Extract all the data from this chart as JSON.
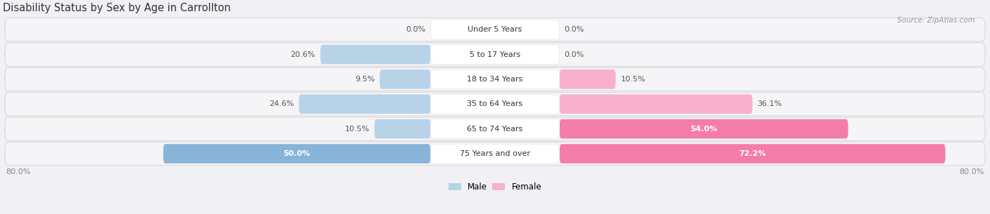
{
  "title": "Disability Status by Sex by Age in Carrollton",
  "source": "Source: ZipAtlas.com",
  "categories": [
    "Under 5 Years",
    "5 to 17 Years",
    "18 to 34 Years",
    "35 to 64 Years",
    "65 to 74 Years",
    "75 Years and over"
  ],
  "male_values": [
    0.0,
    20.6,
    9.5,
    24.6,
    10.5,
    50.0
  ],
  "female_values": [
    0.0,
    0.0,
    10.5,
    36.1,
    54.0,
    72.2
  ],
  "male_color": "#87b4d8",
  "female_color": "#f47caa",
  "male_color_light": "#b8d3e8",
  "female_color_light": "#f8b0cb",
  "row_colors": [
    "#e8e9ee",
    "#dddee5"
  ],
  "bg_color": "#f0f0f5",
  "max_value": 80.0,
  "title_fontsize": 10.5,
  "label_fontsize": 8.0,
  "value_fontsize": 8.0,
  "source_fontsize": 7.5
}
